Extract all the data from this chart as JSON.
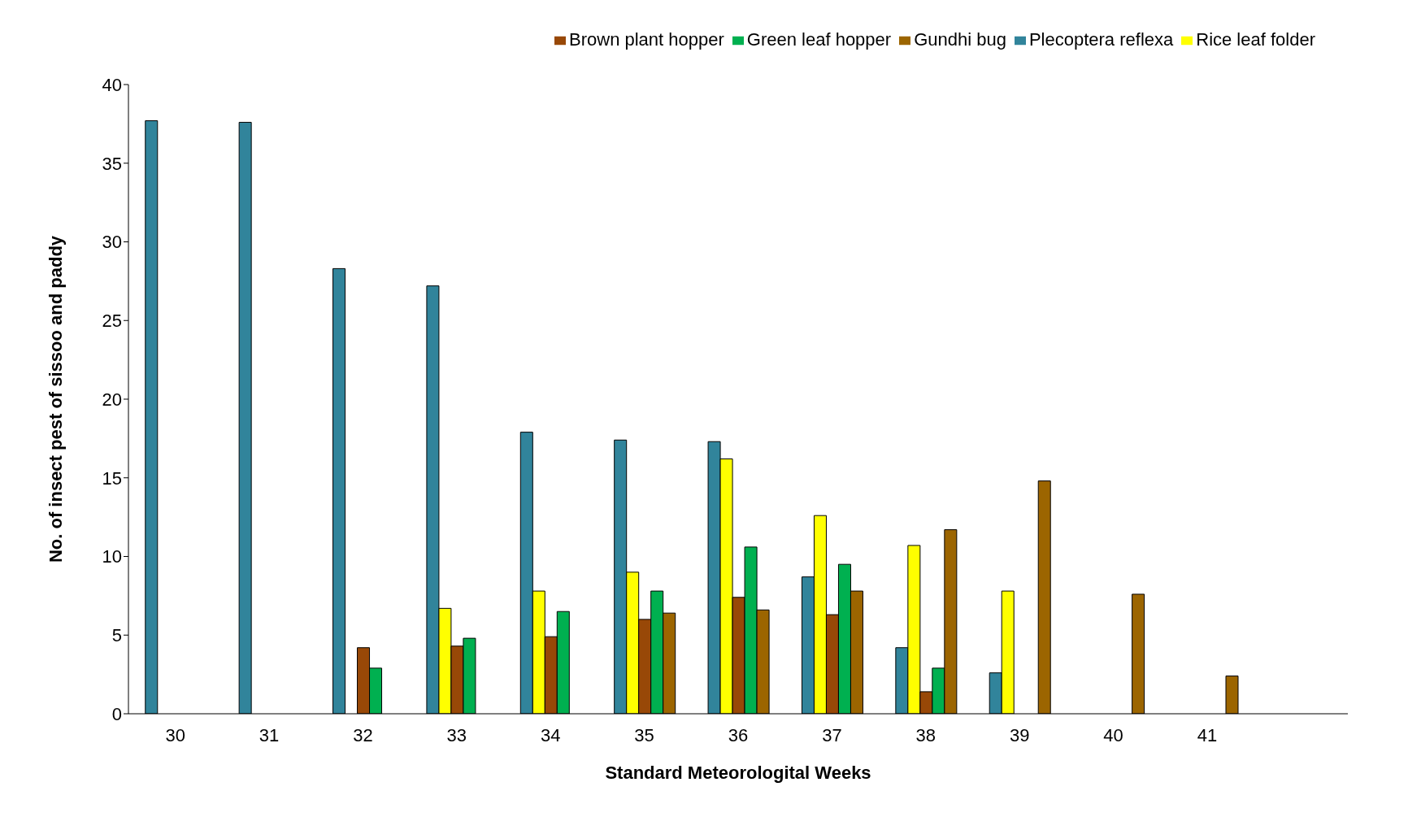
{
  "chart_data": {
    "type": "bar",
    "xlabel": "Standard  Meteorologital  Weeks",
    "ylabel": "No. of  insect  pest of sissoo and paddy",
    "categories": [
      "30",
      "31",
      "32",
      "33",
      "34",
      "35",
      "36",
      "37",
      "38",
      "39",
      "40",
      "41",
      null
    ],
    "series": [
      {
        "name": "Plecoptera reflexa",
        "color": "#31849b",
        "values": [
          37.7,
          37.6,
          28.3,
          27.2,
          17.9,
          17.4,
          17.3,
          8.7,
          4.2,
          2.6,
          null,
          null,
          null
        ]
      },
      {
        "name": "Rice leaf folder",
        "color": "#ffff00",
        "values": [
          null,
          null,
          null,
          6.7,
          7.8,
          9.0,
          16.2,
          12.6,
          10.7,
          7.8,
          null,
          null,
          null
        ]
      },
      {
        "name": "Brown plant hopper",
        "color": "#984807",
        "values": [
          null,
          null,
          4.2,
          4.3,
          4.9,
          6.0,
          7.4,
          6.3,
          1.4,
          null,
          null,
          null,
          null
        ]
      },
      {
        "name": "Green leaf hopper",
        "color": "#00b050",
        "values": [
          null,
          null,
          2.9,
          4.8,
          6.5,
          7.8,
          10.6,
          9.5,
          2.9,
          null,
          null,
          null,
          null
        ]
      },
      {
        "name": "Gundhi bug",
        "color": "#9c6500",
        "values": [
          null,
          null,
          null,
          null,
          null,
          6.4,
          6.6,
          7.8,
          11.7,
          14.8,
          7.6,
          2.4,
          null
        ]
      }
    ],
    "ylim": [
      0,
      40
    ],
    "yticks": [
      0,
      5,
      10,
      15,
      20,
      25,
      30,
      35,
      40
    ],
    "grid": false,
    "legend": "top right"
  }
}
